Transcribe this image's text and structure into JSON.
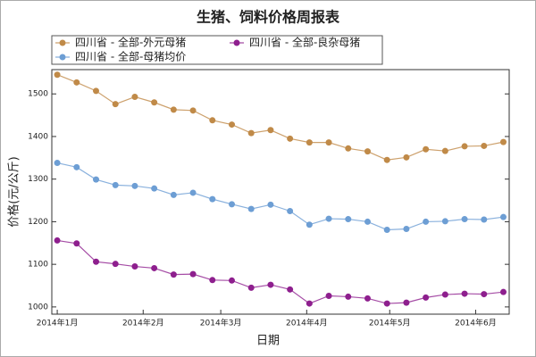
{
  "chart_data": {
    "type": "line",
    "title": "生猪、饲料价格周报表",
    "x_label": "日期",
    "y_label": "价格(元/公斤)",
    "x": [
      0,
      1,
      2,
      3,
      4,
      5,
      6,
      7,
      8,
      9,
      10,
      11,
      12,
      13,
      14,
      15,
      16,
      17,
      18,
      19,
      20,
      21,
      22,
      23
    ],
    "xlim": [
      -0.28,
      23.3
    ],
    "xticks": [
      {
        "value": 0,
        "label": "2014年1月"
      },
      {
        "value": 4.43,
        "label": "2014年2月"
      },
      {
        "value": 8.43,
        "label": "2014年3月"
      },
      {
        "value": 12.86,
        "label": "2014年4月"
      },
      {
        "value": 17.14,
        "label": "2014年5月"
      },
      {
        "value": 21.57,
        "label": "2014年6月"
      }
    ],
    "ylim": [
      983,
      1557
    ],
    "yticks": [
      1000,
      1100,
      1200,
      1300,
      1400,
      1500
    ],
    "series": [
      {
        "name": "四川省 - 全部-外元母猪",
        "color": "#c08a48",
        "values": [
          1545,
          1527,
          1507,
          1476,
          1493,
          1480,
          1463,
          1461,
          1438,
          1428,
          1408,
          1415,
          1395,
          1386,
          1386,
          1372,
          1365,
          1345,
          1351,
          1370,
          1366,
          1377,
          1378,
          1387
        ]
      },
      {
        "name": "四川省 - 全部-良杂母猪",
        "color": "#8e1f8e",
        "values": [
          1156,
          1149,
          1106,
          1101,
          1095,
          1091,
          1076,
          1077,
          1063,
          1062,
          1045,
          1052,
          1041,
          1008,
          1026,
          1024,
          1020,
          1008,
          1010,
          1022,
          1029,
          1031,
          1030,
          1035
        ]
      },
      {
        "name": "四川省 - 全部-母猪均价",
        "color": "#6d9ed4",
        "values": [
          1338,
          1328,
          1299,
          1286,
          1284,
          1278,
          1263,
          1268,
          1253,
          1241,
          1230,
          1240,
          1225,
          1193,
          1207,
          1206,
          1200,
          1181,
          1183,
          1200,
          1201,
          1206,
          1205,
          1211
        ]
      }
    ]
  }
}
